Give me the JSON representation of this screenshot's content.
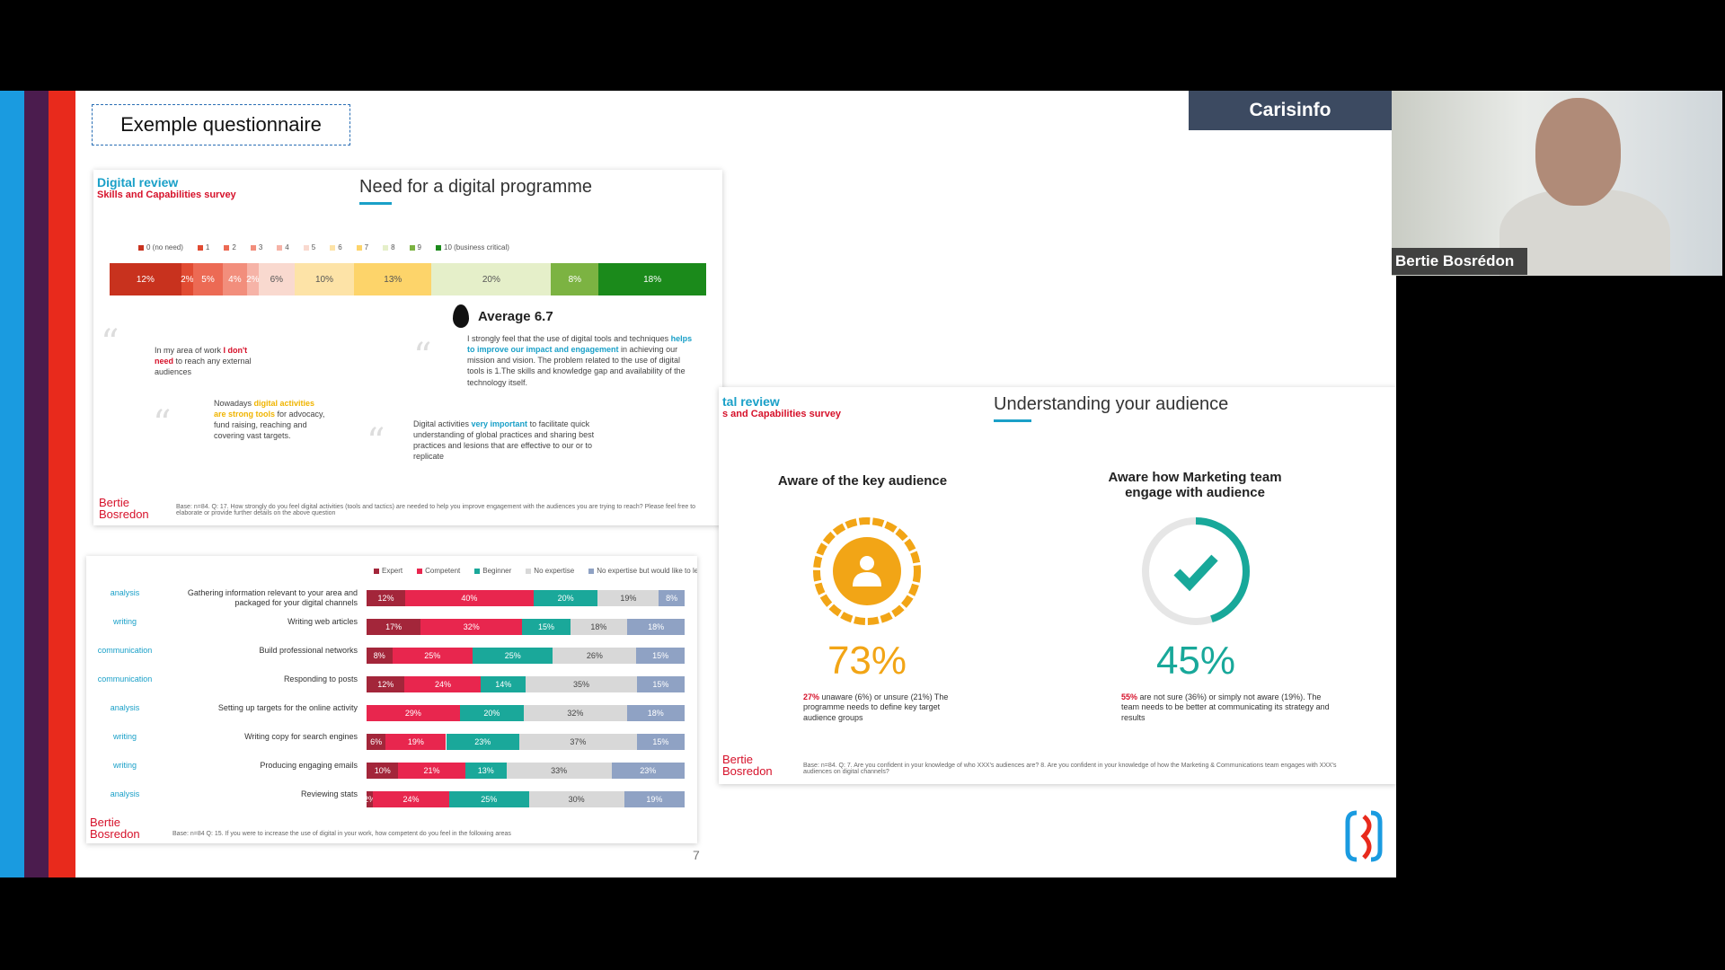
{
  "presentation": {
    "questionnaire_label": "Exemple questionnaire",
    "page_number": "7",
    "brand_label": "Carisinfo",
    "participant_name": "Bertie Bosrédon"
  },
  "slide_digital": {
    "review_title": "Digital review",
    "survey_subtitle": "Skills and Capabilities survey",
    "title": "Need for a digital programme",
    "legend": [
      "0 (no need)",
      "1",
      "2",
      "3",
      "4",
      "5",
      "6",
      "7",
      "8",
      "9",
      "10 (business critical)"
    ],
    "segments": [
      {
        "label": "12%",
        "value": 12,
        "color": "#c8321e"
      },
      {
        "label": "2%",
        "value": 2,
        "color": "#e14b32"
      },
      {
        "label": "5%",
        "value": 5,
        "color": "#ec6a54"
      },
      {
        "label": "4%",
        "value": 4,
        "color": "#f28e7c"
      },
      {
        "label": "2%",
        "value": 2,
        "color": "#f6b3a7"
      },
      {
        "label": "6%",
        "value": 6,
        "color": "#f9d9cf"
      },
      {
        "label": "10%",
        "value": 10,
        "color": "#fde3a7"
      },
      {
        "label": "13%",
        "value": 13,
        "color": "#fdd46a"
      },
      {
        "label": "20%",
        "value": 20,
        "color": "#e5efc9"
      },
      {
        "label": "8%",
        "value": 8,
        "color": "#7cb342"
      },
      {
        "label": "18%",
        "value": 18,
        "color": "#1b8a1b"
      }
    ],
    "average": "Average 6.7",
    "quote1_a": "In my area of work ",
    "quote1_b": "I don't need",
    "quote1_c": " to reach any external audiences",
    "quote2_a": "Nowadays ",
    "quote2_b": "digital activities are strong tools",
    "quote2_c": " for advocacy, fund raising, reaching and covering vast targets.",
    "quote3_a": "I strongly feel that the use of digital tools and techniques ",
    "quote3_b": "helps to improve our impact and engagement",
    "quote3_c": " in achieving our mission and vision. The problem related to the use of digital tools is 1.The skills and knowledge gap and availability of the technology itself.",
    "quote4_a": "Digital activities ",
    "quote4_b": "very important",
    "quote4_c": " to facilitate quick understanding of global practices and sharing best practices and lesions that are effective to our or to replicate",
    "logo": "Bertie Bosredon",
    "footnote": "Base: n=84. Q: 17. How strongly do you feel digital activities (tools and tactics) are needed to help you improve engagement with the audiences you are trying to reach? Please feel free to elaborate or provide further details on the above question"
  },
  "slide_skills": {
    "legend": [
      "Expert",
      "Competent",
      "Beginner",
      "No expertise",
      "No expertise but would like to learn"
    ],
    "colors": [
      "#a3263a",
      "#e8264e",
      "#1aa89a",
      "#d8d8d8",
      "#8fa2c4"
    ],
    "rows": [
      {
        "cat": "analysis",
        "label": "Gathering information relevant to your area and packaged for your digital channels",
        "vals": [
          12,
          40,
          20,
          19,
          8
        ],
        "labels": [
          "12%",
          "40%",
          "20%",
          "19%",
          "8%"
        ]
      },
      {
        "cat": "writing",
        "label": "Writing web articles",
        "vals": [
          17,
          32,
          15,
          18,
          18
        ],
        "labels": [
          "17%",
          "32%",
          "15%",
          "18%",
          "18%"
        ]
      },
      {
        "cat": "communication",
        "label": "Build professional networks",
        "vals": [
          8,
          25,
          25,
          26,
          15
        ],
        "labels": [
          "8%",
          "25%",
          "25%",
          "26%",
          "15%"
        ]
      },
      {
        "cat": "communication",
        "label": "Responding to posts",
        "vals": [
          12,
          24,
          14,
          35,
          15
        ],
        "labels": [
          "12%",
          "24%",
          "14%",
          "35%",
          "15%"
        ]
      },
      {
        "cat": "analysis",
        "label": "Setting up targets for the online activity",
        "vals": [
          0,
          29,
          20,
          32,
          18
        ],
        "labels": [
          "",
          "29%",
          "20%",
          "32%",
          "18%"
        ]
      },
      {
        "cat": "writing",
        "label": "Writing copy for search engines",
        "vals": [
          6,
          19,
          23,
          37,
          15
        ],
        "labels": [
          "6%",
          "19%",
          "23%",
          "37%",
          "15%"
        ]
      },
      {
        "cat": "writing",
        "label": "Producing engaging emails",
        "vals": [
          10,
          21,
          13,
          33,
          23
        ],
        "labels": [
          "10%",
          "21%",
          "13%",
          "33%",
          "23%"
        ]
      },
      {
        "cat": "analysis",
        "label": "Reviewing stats",
        "vals": [
          2,
          24,
          25,
          30,
          19
        ],
        "labels": [
          "2%",
          "24%",
          "25%",
          "30%",
          "19%"
        ]
      }
    ],
    "logo": "Bertie Bosredon",
    "footnote": "Base: n=84 Q: 15. If you were to increase the use of digital in your work, how competent do you feel in the following areas"
  },
  "slide_audience": {
    "review_title": "tal review",
    "survey_subtitle": "s and Capabilities survey",
    "title": "Understanding your audience",
    "left_heading": "Aware of the key audience",
    "left_pct": "73%",
    "left_note_b": "27%",
    "left_note": " unaware (6%) or unsure (21%) The programme needs to define key target audience groups",
    "right_heading": "Aware how Marketing team engage with audience",
    "right_pct": "45%",
    "right_note_b": "55%",
    "right_note": " are not sure (36%) or simply not aware (19%). The team needs to be better at communicating its strategy and results",
    "logo": "Bertie Bosredon",
    "footnote": "Base: n=84. Q: 7. Are you confident in your knowledge of who XXX's audiences are? 8. Are you confident in your knowledge of how the Marketing & Communications team engages with XXX's audiences on digital channels?",
    "colors": {
      "orange": "#f2a516",
      "teal": "#18a89a"
    }
  },
  "icons": [
    "user-icon",
    "check-icon",
    "quote-icon",
    "drop-icon"
  ]
}
